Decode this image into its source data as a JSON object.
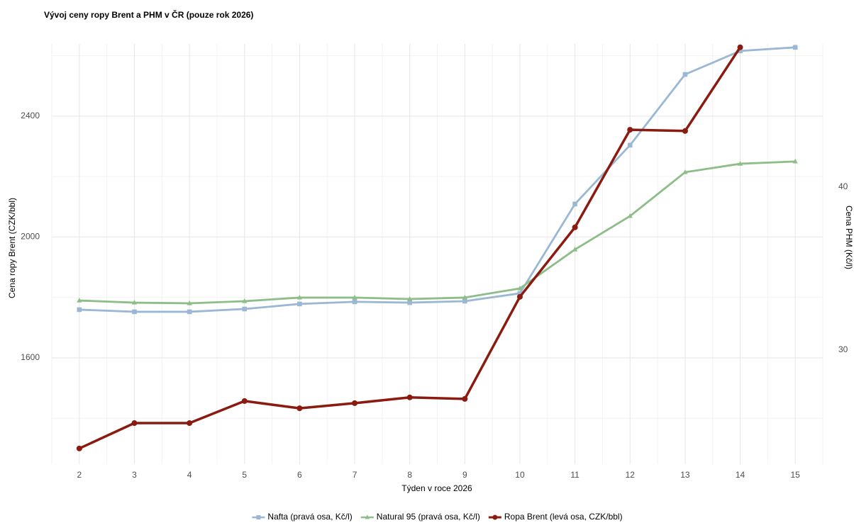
{
  "chart_data": {
    "type": "line",
    "title": "Vývoj ceny ropy Brent a PHM v ČR (pouze rok 2026)",
    "x_label": "Týden v roce 2026",
    "y_label": "Cena ropy Brent (CZK/bbl)",
    "y2_label": "Cena PHM (Kč/l)",
    "x": [
      2,
      3,
      4,
      5,
      6,
      7,
      8,
      9,
      10,
      11,
      12,
      13,
      14,
      15
    ],
    "xlim": [
      1.5,
      15.5
    ],
    "xticks": [
      2,
      3,
      4,
      5,
      6,
      7,
      8,
      9,
      10,
      11,
      12,
      13,
      14,
      15
    ],
    "ylim": [
      1248,
      2639
    ],
    "yticks": [
      1600,
      2000,
      2400
    ],
    "y2lim": [
      23,
      48.78
    ],
    "y2ticks": [
      30,
      40
    ],
    "grid": true,
    "legend": "bottom",
    "series": [
      {
        "name": "Nafta (pravá osa, Kč/l)",
        "color": "#9ab7d3",
        "marker": "square",
        "axis": "y2",
        "values": [
          32.48,
          32.35,
          32.35,
          32.52,
          32.83,
          32.96,
          32.91,
          33.0,
          33.48,
          38.96,
          42.57,
          46.91,
          48.35,
          48.57
        ]
      },
      {
        "name": "Natural 95 (pravá osa, Kč/l)",
        "color": "#8dbd88",
        "marker": "triangle",
        "axis": "y2",
        "values": [
          33.04,
          32.91,
          32.87,
          33.0,
          33.22,
          33.22,
          33.13,
          33.22,
          33.78,
          36.17,
          38.22,
          40.91,
          41.43,
          41.57
        ]
      },
      {
        "name": "Ropa Brent (levá osa, CZK/bbl)",
        "color": "#8b1a10",
        "marker": "circle",
        "axis": "y",
        "values": [
          1300,
          1384,
          1384,
          1457,
          1433,
          1450,
          1469,
          1464,
          1802,
          2032,
          2355,
          2351,
          2628,
          null
        ]
      }
    ]
  }
}
